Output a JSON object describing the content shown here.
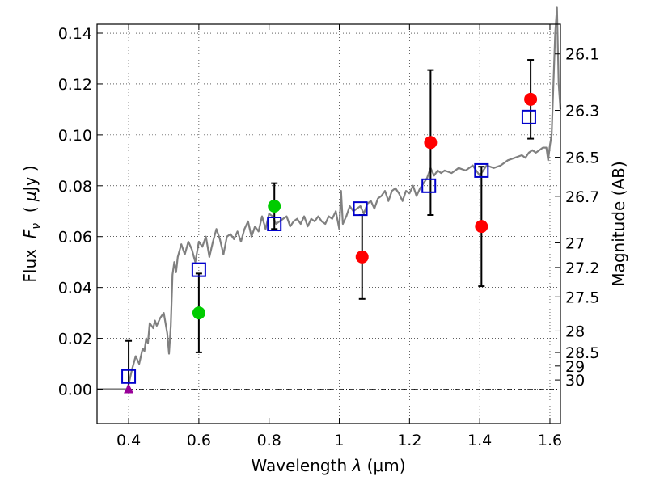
{
  "chart_data": {
    "type": "scatter",
    "xlabel": "Wavelength  λ (μm)",
    "xlabel_parts": {
      "prefix": "Wavelength  ",
      "symbol": "λ",
      "unit": " (μm)"
    },
    "ylabel": "Flux  Fν  ( μJy )",
    "ylabel_parts": {
      "prefix": "Flux  ",
      "symbol": "F",
      "subscript": "ν",
      "unit_open": "  ( ",
      "unit_mid": "μ",
      "unit_close": "Jy )"
    },
    "y2label": "Magnitude (AB)",
    "xlim": [
      0.31,
      1.63
    ],
    "ylim": [
      -0.0135,
      0.1435
    ],
    "grid": true,
    "x_ticks": [
      {
        "value": 0.4,
        "label": "0.4"
      },
      {
        "value": 0.6,
        "label": "0.6"
      },
      {
        "value": 0.8,
        "label": "0.8"
      },
      {
        "value": 1.0,
        "label": "1"
      },
      {
        "value": 1.2,
        "label": "1.2"
      },
      {
        "value": 1.4,
        "label": "1.4"
      },
      {
        "value": 1.6,
        "label": "1.6"
      }
    ],
    "y_ticks": [
      {
        "value": 0.0,
        "label": "0.00"
      },
      {
        "value": 0.02,
        "label": "0.02"
      },
      {
        "value": 0.04,
        "label": "0.04"
      },
      {
        "value": 0.06,
        "label": "0.06"
      },
      {
        "value": 0.08,
        "label": "0.08"
      },
      {
        "value": 0.1,
        "label": "0.10"
      },
      {
        "value": 0.12,
        "label": "0.12"
      },
      {
        "value": 0.14,
        "label": "0.14"
      }
    ],
    "magnitude_ticks": [
      {
        "mag": 26.1,
        "label": "26.1"
      },
      {
        "mag": 26.3,
        "label": "26.3"
      },
      {
        "mag": 26.5,
        "label": "26.5"
      },
      {
        "mag": 26.7,
        "label": "26.7"
      },
      {
        "mag": 27.0,
        "label": "27"
      },
      {
        "mag": 27.2,
        "label": "27.2"
      },
      {
        "mag": 27.5,
        "label": "27.5"
      },
      {
        "mag": 28.0,
        "label": "28"
      },
      {
        "mag": 28.5,
        "label": "28.5"
      },
      {
        "mag": 29.0,
        "label": "29"
      },
      {
        "mag": 30.0,
        "label": "30"
      }
    ],
    "series": [
      {
        "name": "model-spectrum",
        "kind": "line",
        "color": "#808080",
        "x": [
          0.31,
          0.39,
          0.395,
          0.4,
          0.41,
          0.42,
          0.43,
          0.44,
          0.445,
          0.45,
          0.455,
          0.46,
          0.47,
          0.475,
          0.48,
          0.49,
          0.5,
          0.51,
          0.515,
          0.52,
          0.525,
          0.53,
          0.535,
          0.54,
          0.55,
          0.56,
          0.57,
          0.58,
          0.59,
          0.6,
          0.61,
          0.62,
          0.63,
          0.64,
          0.65,
          0.66,
          0.67,
          0.68,
          0.69,
          0.7,
          0.71,
          0.72,
          0.73,
          0.74,
          0.75,
          0.76,
          0.77,
          0.78,
          0.79,
          0.8,
          0.81,
          0.82,
          0.83,
          0.84,
          0.85,
          0.86,
          0.87,
          0.88,
          0.89,
          0.9,
          0.91,
          0.92,
          0.93,
          0.94,
          0.95,
          0.96,
          0.97,
          0.98,
          0.99,
          1.0,
          1.005,
          1.01,
          1.02,
          1.03,
          1.04,
          1.05,
          1.06,
          1.07,
          1.08,
          1.09,
          1.1,
          1.11,
          1.12,
          1.13,
          1.14,
          1.15,
          1.16,
          1.17,
          1.18,
          1.19,
          1.2,
          1.21,
          1.22,
          1.23,
          1.24,
          1.25,
          1.26,
          1.27,
          1.28,
          1.29,
          1.3,
          1.32,
          1.34,
          1.36,
          1.38,
          1.4,
          1.42,
          1.44,
          1.46,
          1.48,
          1.5,
          1.52,
          1.53,
          1.54,
          1.55,
          1.56,
          1.57,
          1.58,
          1.59,
          1.595,
          1.6,
          1.605,
          1.61,
          1.615,
          1.62,
          1.625,
          1.63
        ],
        "y": [
          0.0,
          0.0,
          0.0,
          0.002,
          0.008,
          0.013,
          0.01,
          0.016,
          0.015,
          0.02,
          0.018,
          0.026,
          0.024,
          0.027,
          0.025,
          0.028,
          0.03,
          0.022,
          0.014,
          0.025,
          0.045,
          0.05,
          0.046,
          0.052,
          0.057,
          0.053,
          0.058,
          0.055,
          0.05,
          0.058,
          0.056,
          0.06,
          0.052,
          0.058,
          0.063,
          0.059,
          0.053,
          0.06,
          0.061,
          0.059,
          0.062,
          0.058,
          0.063,
          0.066,
          0.06,
          0.064,
          0.062,
          0.068,
          0.063,
          0.069,
          0.068,
          0.065,
          0.066,
          0.067,
          0.068,
          0.064,
          0.066,
          0.067,
          0.065,
          0.068,
          0.064,
          0.067,
          0.066,
          0.068,
          0.066,
          0.065,
          0.068,
          0.067,
          0.07,
          0.063,
          0.078,
          0.065,
          0.068,
          0.072,
          0.07,
          0.071,
          0.072,
          0.069,
          0.073,
          0.074,
          0.071,
          0.075,
          0.076,
          0.078,
          0.074,
          0.078,
          0.079,
          0.077,
          0.074,
          0.078,
          0.077,
          0.08,
          0.076,
          0.079,
          0.081,
          0.083,
          0.087,
          0.084,
          0.086,
          0.085,
          0.086,
          0.085,
          0.087,
          0.086,
          0.088,
          0.084,
          0.088,
          0.087,
          0.088,
          0.09,
          0.091,
          0.092,
          0.091,
          0.093,
          0.094,
          0.093,
          0.094,
          0.095,
          0.095,
          0.09,
          0.096,
          0.1,
          0.12,
          0.14,
          0.15,
          0.12,
          0.11
        ]
      },
      {
        "name": "model-photometry",
        "kind": "open-square",
        "color": "#0000cc",
        "x": [
          0.4,
          0.6,
          0.815,
          1.06,
          1.255,
          1.405,
          1.54
        ],
        "y": [
          0.005,
          0.047,
          0.065,
          0.071,
          0.08,
          0.086,
          0.107
        ]
      },
      {
        "name": "observed-green",
        "kind": "filled-circle",
        "color": "#00cc00",
        "x": [
          0.6,
          0.815
        ],
        "y": [
          0.03,
          0.072
        ],
        "yerr": [
          0.0155,
          0.009
        ]
      },
      {
        "name": "observed-red",
        "kind": "filled-circle",
        "color": "#ff0000",
        "x": [
          1.065,
          1.26,
          1.405,
          1.545
        ],
        "y": [
          0.052,
          0.097,
          0.064,
          0.114
        ],
        "yerr": [
          0.0165,
          0.0285,
          0.0235,
          0.0155
        ]
      },
      {
        "name": "upper-limit",
        "kind": "triangle",
        "color": "#990099",
        "x": [
          0.4
        ],
        "y": [
          0.0
        ],
        "yerr": [
          0.019
        ]
      }
    ]
  }
}
